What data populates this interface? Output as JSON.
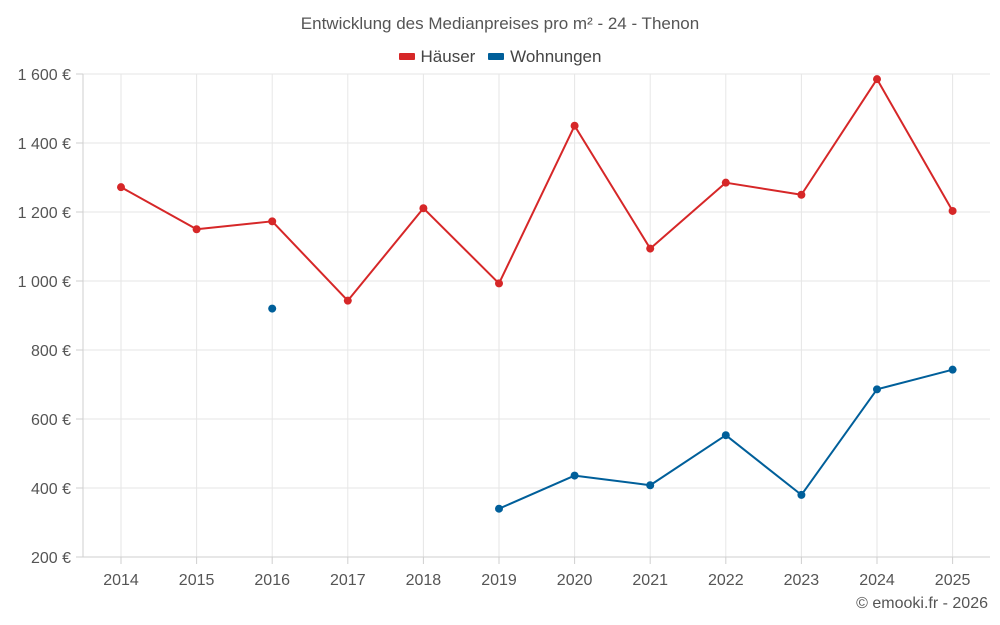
{
  "chart_data": {
    "type": "line",
    "title": "Entwicklung des Medianpreises pro m² - 24 - Thenon",
    "categories": [
      "2014",
      "2015",
      "2016",
      "2017",
      "2018",
      "2019",
      "2020",
      "2021",
      "2022",
      "2023",
      "2024",
      "2025"
    ],
    "series": [
      {
        "name": "Häuser",
        "color": "#d62728",
        "values": [
          1272,
          1150,
          1173,
          943,
          1211,
          993,
          1450,
          1094,
          1285,
          1250,
          1585,
          1203
        ]
      },
      {
        "name": "Wohnungen",
        "color": "#005f9a",
        "values": [
          null,
          null,
          920,
          null,
          null,
          340,
          436,
          408,
          553,
          380,
          686,
          743
        ]
      }
    ],
    "ylim": [
      200,
      1600
    ],
    "yticks": [
      200,
      400,
      600,
      800,
      1000,
      1200,
      1400,
      1600
    ],
    "ytick_labels": [
      "200 €",
      "400 €",
      "600 €",
      "800 €",
      "1 000 €",
      "1 200 €",
      "1 400 €",
      "1 600 €"
    ],
    "xlabel": "",
    "ylabel": "",
    "grid": true,
    "legend_position": "top-center"
  },
  "footer": {
    "copyright": "© emooki.fr - 2026"
  }
}
